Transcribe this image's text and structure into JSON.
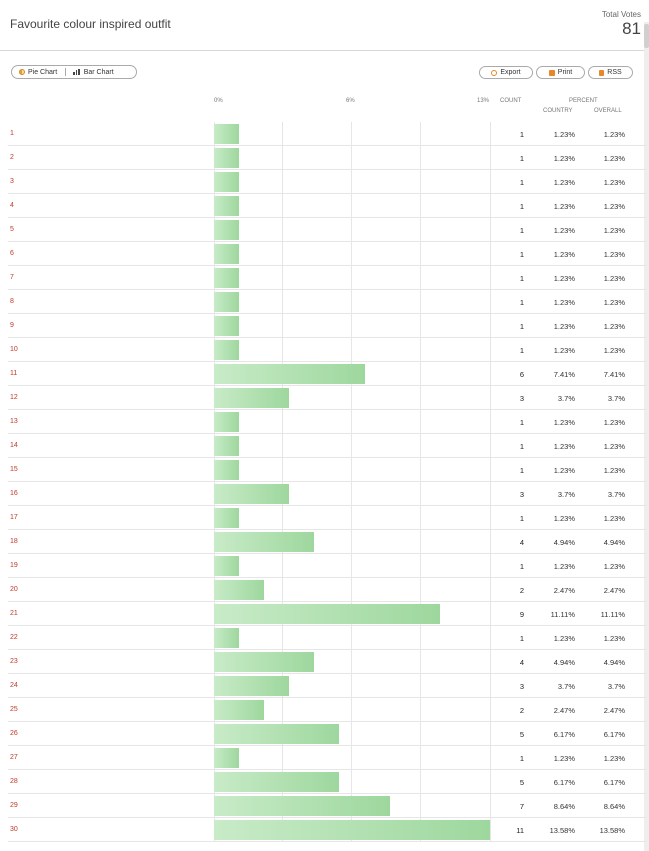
{
  "header": {
    "title": "Favourite colour inspired outfit",
    "total_votes_label": "Total Votes",
    "total_votes_value": "81"
  },
  "toolbar": {
    "pie_chart_label": "Pie Chart",
    "bar_chart_label": "Bar Chart",
    "export_label": "Export",
    "print_label": "Print",
    "rss_label": "RSS"
  },
  "columns": {
    "axis_0": "0%",
    "axis_mid": "6%",
    "axis_max": "13%",
    "count": "COUNT",
    "percent": "PERCENT",
    "country": "COUNTRY",
    "overall": "OVERALL"
  },
  "colors": {
    "bar_start": "#c8ebc8",
    "bar_end": "#9ed79e",
    "category_text": "#c0392b",
    "accent_icon": "#e6882a"
  },
  "chart_data": {
    "type": "bar",
    "orientation": "horizontal",
    "xlim_percent": [
      0,
      13
    ],
    "x_ticks": [
      "0%",
      "6%",
      "13%"
    ],
    "categories": [
      "1",
      "2",
      "3",
      "4",
      "5",
      "6",
      "7",
      "8",
      "9",
      "10",
      "11",
      "12",
      "13",
      "14",
      "15",
      "16",
      "17",
      "18",
      "19",
      "20",
      "21",
      "22",
      "23",
      "24",
      "25",
      "26",
      "27",
      "28",
      "29",
      "30"
    ],
    "counts": [
      1,
      1,
      1,
      1,
      1,
      1,
      1,
      1,
      1,
      1,
      6,
      3,
      1,
      1,
      1,
      3,
      1,
      4,
      1,
      2,
      9,
      1,
      4,
      3,
      2,
      5,
      1,
      5,
      7,
      11
    ],
    "percent_country": [
      "1.23%",
      "1.23%",
      "1.23%",
      "1.23%",
      "1.23%",
      "1.23%",
      "1.23%",
      "1.23%",
      "1.23%",
      "1.23%",
      "7.41%",
      "3.7%",
      "1.23%",
      "1.23%",
      "1.23%",
      "3.7%",
      "1.23%",
      "4.94%",
      "1.23%",
      "2.47%",
      "11.11%",
      "1.23%",
      "4.94%",
      "3.7%",
      "2.47%",
      "6.17%",
      "1.23%",
      "6.17%",
      "8.64%",
      "13.58%"
    ],
    "percent_overall": [
      "1.23%",
      "1.23%",
      "1.23%",
      "1.23%",
      "1.23%",
      "1.23%",
      "1.23%",
      "1.23%",
      "1.23%",
      "1.23%",
      "7.41%",
      "3.7%",
      "1.23%",
      "1.23%",
      "1.23%",
      "3.7%",
      "1.23%",
      "4.94%",
      "1.23%",
      "2.47%",
      "11.11%",
      "1.23%",
      "4.94%",
      "3.7%",
      "2.47%",
      "6.17%",
      "1.23%",
      "6.17%",
      "8.64%",
      "13.58%"
    ]
  }
}
